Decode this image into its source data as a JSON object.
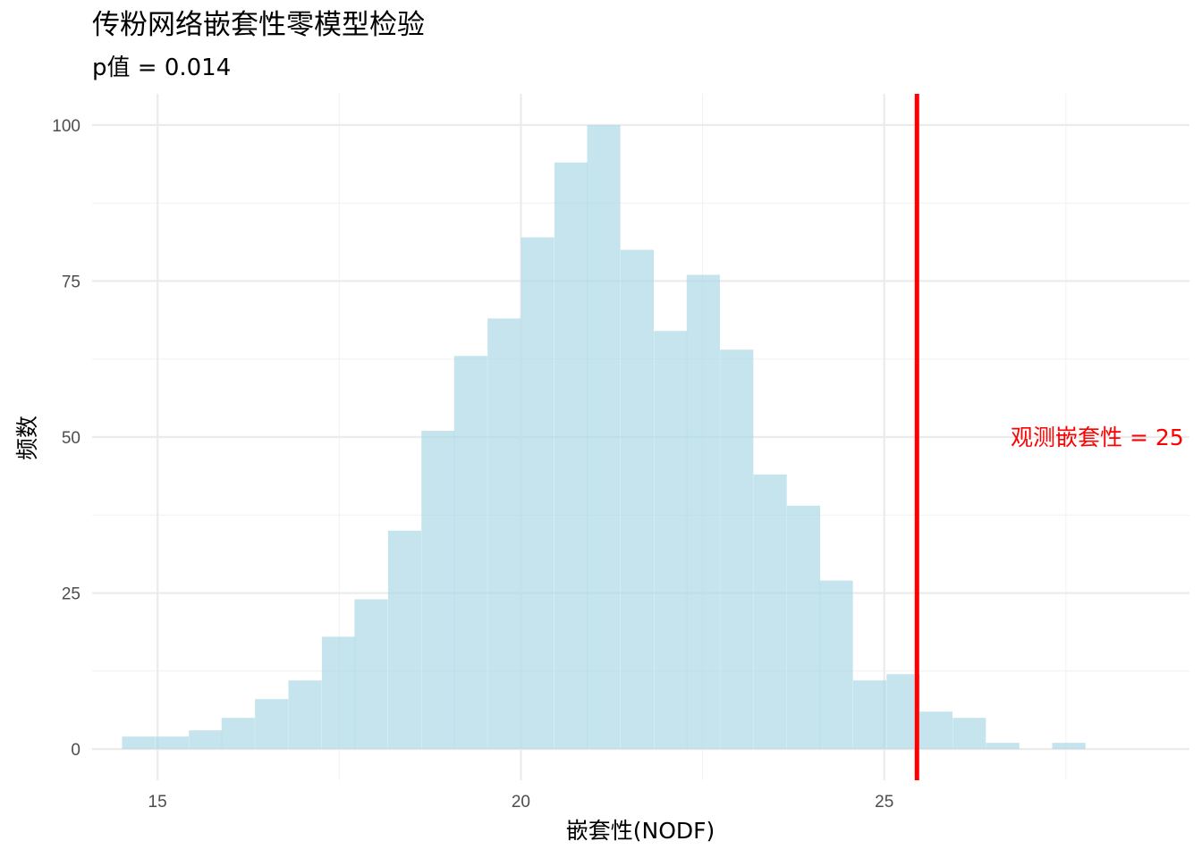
{
  "chart_data": {
    "type": "bar",
    "title": "传粉网络嵌套性零模型检验",
    "subtitle": "p值 = 0.014",
    "xlabel": "嵌套性(NODF)",
    "ylabel": "频数",
    "xlim": [
      14.1,
      29.2
    ],
    "ylim": [
      -5,
      105
    ],
    "x_ticks": [
      15,
      20,
      25
    ],
    "y_ticks": [
      0,
      25,
      50,
      75,
      100
    ],
    "grid": true,
    "bin_width": 0.457,
    "bin_centers": [
      14.74,
      15.2,
      15.66,
      16.11,
      16.57,
      17.03,
      17.49,
      17.94,
      18.4,
      18.86,
      19.31,
      19.77,
      20.23,
      20.69,
      21.14,
      21.6,
      22.06,
      22.51,
      22.97,
      23.43,
      23.89,
      24.34,
      24.8,
      25.26,
      25.71,
      26.17,
      26.63,
      27.09,
      27.54
    ],
    "values": [
      2,
      2,
      3,
      5,
      8,
      11,
      18,
      24,
      35,
      51,
      63,
      69,
      82,
      94,
      100,
      80,
      67,
      76,
      64,
      44,
      39,
      27,
      11,
      12,
      6,
      5,
      1,
      0,
      1
    ],
    "bar_color": "#ADD8E6",
    "observed_value": 25.45,
    "observed_line_color": "#FF0000",
    "observed_label": "观测嵌套性 = 25",
    "observed_label_y": 50
  }
}
